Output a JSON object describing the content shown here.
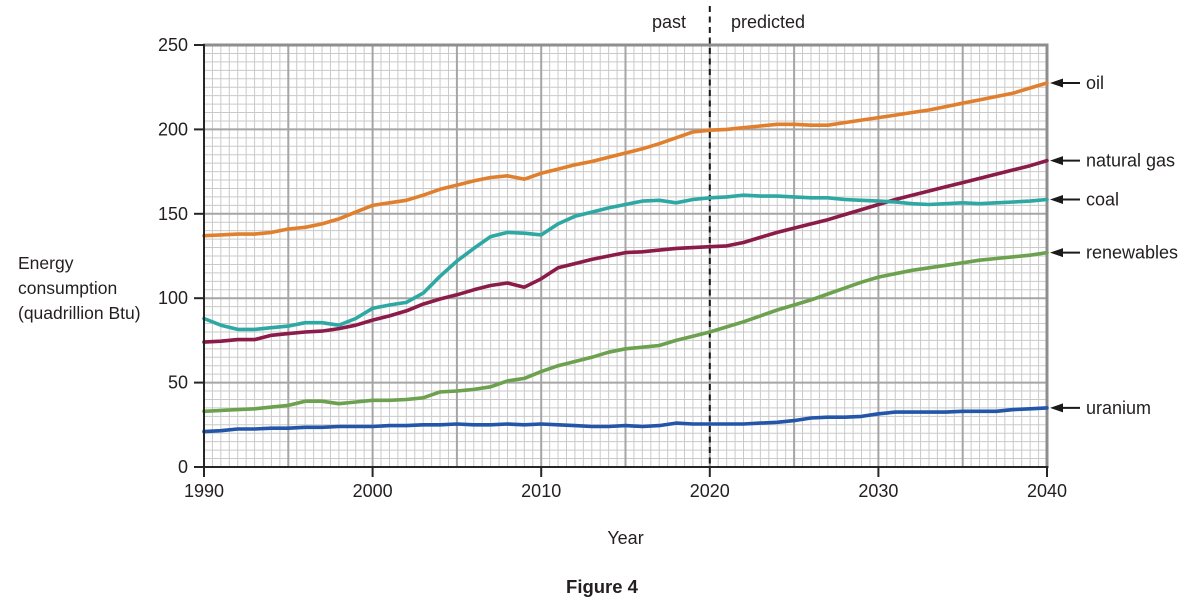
{
  "figure": {
    "caption": "Figure 4",
    "y_axis_title_lines": [
      "Energy",
      "consumption",
      "(quadrillion Btu)"
    ]
  },
  "chart_data": {
    "type": "line",
    "title": "",
    "xlabel": "Year",
    "ylabel": "Energy consumption (quadrillion Btu)",
    "xlim": [
      1990,
      2040
    ],
    "ylim": [
      0,
      250
    ],
    "x_ticks": [
      1990,
      2000,
      2010,
      2020,
      2030,
      2040
    ],
    "y_ticks": [
      0,
      50,
      100,
      150,
      200,
      250
    ],
    "grid": {
      "minor_x_step_years": 0.5,
      "minor_y_step_units": 5,
      "major_x_step_years": 5,
      "major_y_step_units": 50,
      "minor_color": "#CACACA",
      "major_color": "#A5A5A5",
      "border_color": "#8E8E8E"
    },
    "divider": {
      "x": 2020,
      "style": "dashed",
      "left_label": "past",
      "right_label": "predicted"
    },
    "legend_position": "right-arrows",
    "x": [
      1990,
      1991,
      1992,
      1993,
      1994,
      1995,
      1996,
      1997,
      1998,
      1999,
      2000,
      2001,
      2002,
      2003,
      2004,
      2005,
      2006,
      2007,
      2008,
      2009,
      2010,
      2011,
      2012,
      2013,
      2014,
      2015,
      2016,
      2017,
      2018,
      2019,
      2020,
      2021,
      2022,
      2023,
      2024,
      2025,
      2026,
      2027,
      2028,
      2029,
      2030,
      2031,
      2032,
      2033,
      2034,
      2035,
      2036,
      2037,
      2038,
      2039,
      2040
    ],
    "series": [
      {
        "id": "oil",
        "name": "oil",
        "color": "#E0802F",
        "values": [
          137,
          137.5,
          138,
          138,
          139,
          141,
          142,
          144,
          147,
          151,
          155,
          156.5,
          158,
          161,
          164.5,
          167,
          169.5,
          171.5,
          172.5,
          170.5,
          174,
          176.5,
          179,
          181,
          183.5,
          186,
          188.5,
          191.5,
          195,
          198.5,
          199.5,
          200,
          201,
          202,
          203,
          203,
          202.5,
          202.5,
          204,
          205.5,
          207,
          208.5,
          210,
          211.5,
          213.5,
          215.5,
          217.5,
          219.5,
          221.5,
          224.5,
          227.5
        ]
      },
      {
        "id": "natural-gas",
        "name": "natural gas",
        "color": "#8B1B48",
        "values": [
          74,
          74.5,
          75.5,
          75.5,
          78,
          79,
          80,
          80.5,
          82,
          84,
          87,
          89.5,
          92.5,
          96.5,
          99.5,
          102,
          105,
          107.5,
          109,
          106.5,
          111.5,
          118,
          120.5,
          123,
          125,
          127,
          127.5,
          128.5,
          129.5,
          130,
          130.5,
          131,
          133,
          136,
          139,
          141.5,
          144,
          146.5,
          149.5,
          152.5,
          155.5,
          158.5,
          161,
          163.5,
          166,
          168.5,
          171,
          173.5,
          176,
          178.5,
          181.5
        ]
      },
      {
        "id": "coal",
        "name": "coal",
        "color": "#2EA8A2",
        "values": [
          88,
          84,
          81.5,
          81.5,
          82.5,
          83.5,
          85.5,
          85.5,
          84,
          88,
          94,
          96,
          97.5,
          103,
          113,
          122,
          129.5,
          136.5,
          139,
          138.5,
          137.5,
          144,
          148.5,
          151,
          153.5,
          155.5,
          157.5,
          158,
          156.5,
          158.5,
          159.5,
          160,
          161,
          160.5,
          160.5,
          160,
          159.5,
          159.5,
          158.5,
          158,
          157.5,
          157,
          156,
          155.5,
          156,
          156.5,
          156,
          156.5,
          157,
          157.5,
          158.5
        ]
      },
      {
        "id": "renewables",
        "name": "renewables",
        "color": "#6CA14F",
        "values": [
          33,
          33.5,
          34,
          34.5,
          35.5,
          36.5,
          39,
          39,
          37.5,
          38.5,
          39.5,
          39.5,
          40,
          41,
          44.5,
          45,
          46,
          47.5,
          51,
          52.5,
          56.5,
          60,
          62.5,
          65,
          68,
          70,
          71,
          72,
          75,
          77.5,
          80,
          83,
          86,
          89.5,
          93,
          96,
          99,
          102.5,
          106,
          109.5,
          112.5,
          114.5,
          116.5,
          118,
          119.5,
          121,
          122.5,
          123.5,
          124.5,
          125.5,
          127
        ]
      },
      {
        "id": "uranium",
        "name": "uranium",
        "color": "#2355A8",
        "values": [
          21,
          21.5,
          22.5,
          22.5,
          23,
          23,
          23.5,
          23.5,
          24,
          24,
          24,
          24.5,
          24.5,
          25,
          25,
          25.5,
          25,
          25,
          25.5,
          25,
          25.5,
          25,
          24.5,
          24,
          24,
          24.5,
          24,
          24.5,
          26,
          25.5,
          25.5,
          25.5,
          25.5,
          26,
          26.5,
          27.5,
          29,
          29.5,
          29.5,
          30,
          31.5,
          32.5,
          32.5,
          32.5,
          32.5,
          33,
          33,
          33,
          34,
          34.5,
          35
        ]
      }
    ]
  }
}
